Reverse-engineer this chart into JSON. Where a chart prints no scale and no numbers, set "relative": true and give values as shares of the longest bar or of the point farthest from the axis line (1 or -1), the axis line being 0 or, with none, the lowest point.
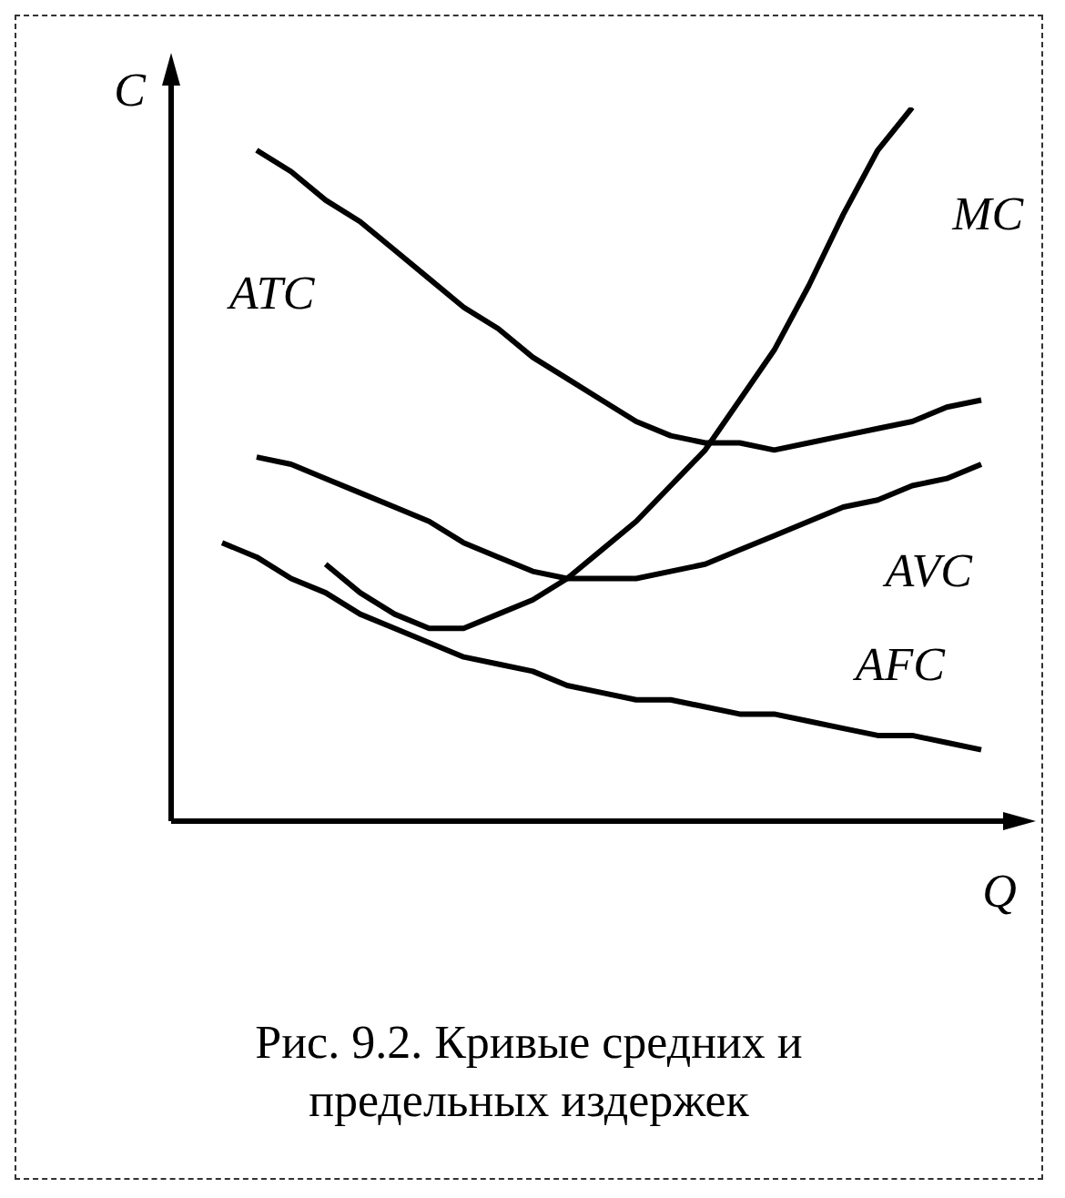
{
  "chart_data": {
    "type": "line",
    "relative": true,
    "xlabel": "Q",
    "ylabel": "C",
    "title": "Рис. 9.2. Кривые средних и предельных издержек",
    "categories": [
      null,
      null,
      null,
      null,
      null,
      null,
      null,
      null,
      null,
      null,
      null,
      null,
      null,
      null,
      null,
      null,
      null,
      null,
      null,
      null,
      null,
      null,
      null
    ],
    "marker": "none",
    "line_style": "solid",
    "legend": false,
    "grid": false,
    "series": [
      {
        "name": "ATC",
        "color": "#000000",
        "values": [
          null,
          0.94,
          0.91,
          0.87,
          0.84,
          0.8,
          0.76,
          0.72,
          0.69,
          0.65,
          0.62,
          0.59,
          0.56,
          0.54,
          0.53,
          0.53,
          0.52,
          0.53,
          0.54,
          0.55,
          0.56,
          0.58,
          0.59
        ]
      },
      {
        "name": "AVC",
        "color": "#000000",
        "values": [
          null,
          0.51,
          0.5,
          0.48,
          0.46,
          0.44,
          0.42,
          0.39,
          0.37,
          0.35,
          0.34,
          0.34,
          0.34,
          0.35,
          0.36,
          0.38,
          0.4,
          0.42,
          0.44,
          0.45,
          0.47,
          0.48,
          0.5
        ]
      },
      {
        "name": "AFC",
        "color": "#000000",
        "values": [
          0.39,
          0.37,
          0.34,
          0.32,
          0.29,
          0.27,
          0.25,
          0.23,
          0.22,
          0.21,
          0.19,
          0.18,
          0.17,
          0.17,
          0.16,
          0.15,
          0.15,
          0.14,
          0.13,
          0.12,
          0.12,
          0.11,
          0.1
        ]
      },
      {
        "name": "MC",
        "color": "#000000",
        "values": [
          null,
          null,
          null,
          0.36,
          0.32,
          0.29,
          0.27,
          0.27,
          0.29,
          0.31,
          0.34,
          0.38,
          0.42,
          0.47,
          0.52,
          0.59,
          0.66,
          0.75,
          0.85,
          0.94,
          1,
          null,
          null
        ]
      }
    ]
  }
}
